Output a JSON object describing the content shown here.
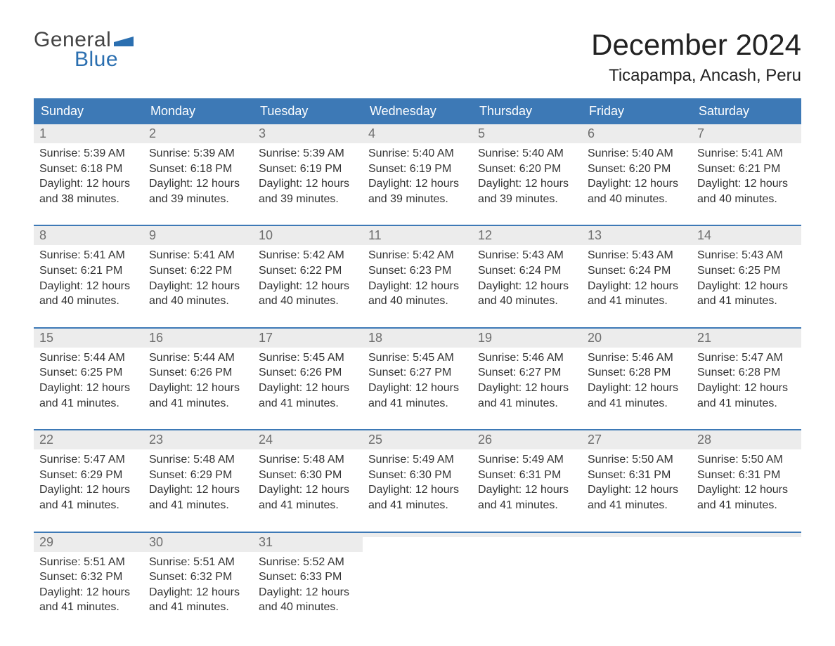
{
  "logo": {
    "word1": "General",
    "word2": "Blue"
  },
  "title": "December 2024",
  "location": "Ticapampa, Ancash, Peru",
  "colors": {
    "header_bg": "#3d79b6",
    "header_text": "#ffffff",
    "daynum_bg": "#ececec",
    "daynum_text": "#6e6e6e",
    "body_text": "#333333",
    "logo_gray": "#444444",
    "logo_blue": "#2b6fb0",
    "week_border": "#3d79b6",
    "page_bg": "#ffffff"
  },
  "fonts": {
    "family": "Arial",
    "title_pt": 42,
    "location_pt": 24,
    "dayhead_pt": 18,
    "daynum_pt": 18,
    "body_pt": 16,
    "logo_pt": 30
  },
  "day_headers": [
    "Sunday",
    "Monday",
    "Tuesday",
    "Wednesday",
    "Thursday",
    "Friday",
    "Saturday"
  ],
  "weeks": [
    [
      {
        "num": "1",
        "sunrise": "Sunrise: 5:39 AM",
        "sunset": "Sunset: 6:18 PM",
        "dl1": "Daylight: 12 hours",
        "dl2": "and 38 minutes."
      },
      {
        "num": "2",
        "sunrise": "Sunrise: 5:39 AM",
        "sunset": "Sunset: 6:18 PM",
        "dl1": "Daylight: 12 hours",
        "dl2": "and 39 minutes."
      },
      {
        "num": "3",
        "sunrise": "Sunrise: 5:39 AM",
        "sunset": "Sunset: 6:19 PM",
        "dl1": "Daylight: 12 hours",
        "dl2": "and 39 minutes."
      },
      {
        "num": "4",
        "sunrise": "Sunrise: 5:40 AM",
        "sunset": "Sunset: 6:19 PM",
        "dl1": "Daylight: 12 hours",
        "dl2": "and 39 minutes."
      },
      {
        "num": "5",
        "sunrise": "Sunrise: 5:40 AM",
        "sunset": "Sunset: 6:20 PM",
        "dl1": "Daylight: 12 hours",
        "dl2": "and 39 minutes."
      },
      {
        "num": "6",
        "sunrise": "Sunrise: 5:40 AM",
        "sunset": "Sunset: 6:20 PM",
        "dl1": "Daylight: 12 hours",
        "dl2": "and 40 minutes."
      },
      {
        "num": "7",
        "sunrise": "Sunrise: 5:41 AM",
        "sunset": "Sunset: 6:21 PM",
        "dl1": "Daylight: 12 hours",
        "dl2": "and 40 minutes."
      }
    ],
    [
      {
        "num": "8",
        "sunrise": "Sunrise: 5:41 AM",
        "sunset": "Sunset: 6:21 PM",
        "dl1": "Daylight: 12 hours",
        "dl2": "and 40 minutes."
      },
      {
        "num": "9",
        "sunrise": "Sunrise: 5:41 AM",
        "sunset": "Sunset: 6:22 PM",
        "dl1": "Daylight: 12 hours",
        "dl2": "and 40 minutes."
      },
      {
        "num": "10",
        "sunrise": "Sunrise: 5:42 AM",
        "sunset": "Sunset: 6:22 PM",
        "dl1": "Daylight: 12 hours",
        "dl2": "and 40 minutes."
      },
      {
        "num": "11",
        "sunrise": "Sunrise: 5:42 AM",
        "sunset": "Sunset: 6:23 PM",
        "dl1": "Daylight: 12 hours",
        "dl2": "and 40 minutes."
      },
      {
        "num": "12",
        "sunrise": "Sunrise: 5:43 AM",
        "sunset": "Sunset: 6:24 PM",
        "dl1": "Daylight: 12 hours",
        "dl2": "and 40 minutes."
      },
      {
        "num": "13",
        "sunrise": "Sunrise: 5:43 AM",
        "sunset": "Sunset: 6:24 PM",
        "dl1": "Daylight: 12 hours",
        "dl2": "and 41 minutes."
      },
      {
        "num": "14",
        "sunrise": "Sunrise: 5:43 AM",
        "sunset": "Sunset: 6:25 PM",
        "dl1": "Daylight: 12 hours",
        "dl2": "and 41 minutes."
      }
    ],
    [
      {
        "num": "15",
        "sunrise": "Sunrise: 5:44 AM",
        "sunset": "Sunset: 6:25 PM",
        "dl1": "Daylight: 12 hours",
        "dl2": "and 41 minutes."
      },
      {
        "num": "16",
        "sunrise": "Sunrise: 5:44 AM",
        "sunset": "Sunset: 6:26 PM",
        "dl1": "Daylight: 12 hours",
        "dl2": "and 41 minutes."
      },
      {
        "num": "17",
        "sunrise": "Sunrise: 5:45 AM",
        "sunset": "Sunset: 6:26 PM",
        "dl1": "Daylight: 12 hours",
        "dl2": "and 41 minutes."
      },
      {
        "num": "18",
        "sunrise": "Sunrise: 5:45 AM",
        "sunset": "Sunset: 6:27 PM",
        "dl1": "Daylight: 12 hours",
        "dl2": "and 41 minutes."
      },
      {
        "num": "19",
        "sunrise": "Sunrise: 5:46 AM",
        "sunset": "Sunset: 6:27 PM",
        "dl1": "Daylight: 12 hours",
        "dl2": "and 41 minutes."
      },
      {
        "num": "20",
        "sunrise": "Sunrise: 5:46 AM",
        "sunset": "Sunset: 6:28 PM",
        "dl1": "Daylight: 12 hours",
        "dl2": "and 41 minutes."
      },
      {
        "num": "21",
        "sunrise": "Sunrise: 5:47 AM",
        "sunset": "Sunset: 6:28 PM",
        "dl1": "Daylight: 12 hours",
        "dl2": "and 41 minutes."
      }
    ],
    [
      {
        "num": "22",
        "sunrise": "Sunrise: 5:47 AM",
        "sunset": "Sunset: 6:29 PM",
        "dl1": "Daylight: 12 hours",
        "dl2": "and 41 minutes."
      },
      {
        "num": "23",
        "sunrise": "Sunrise: 5:48 AM",
        "sunset": "Sunset: 6:29 PM",
        "dl1": "Daylight: 12 hours",
        "dl2": "and 41 minutes."
      },
      {
        "num": "24",
        "sunrise": "Sunrise: 5:48 AM",
        "sunset": "Sunset: 6:30 PM",
        "dl1": "Daylight: 12 hours",
        "dl2": "and 41 minutes."
      },
      {
        "num": "25",
        "sunrise": "Sunrise: 5:49 AM",
        "sunset": "Sunset: 6:30 PM",
        "dl1": "Daylight: 12 hours",
        "dl2": "and 41 minutes."
      },
      {
        "num": "26",
        "sunrise": "Sunrise: 5:49 AM",
        "sunset": "Sunset: 6:31 PM",
        "dl1": "Daylight: 12 hours",
        "dl2": "and 41 minutes."
      },
      {
        "num": "27",
        "sunrise": "Sunrise: 5:50 AM",
        "sunset": "Sunset: 6:31 PM",
        "dl1": "Daylight: 12 hours",
        "dl2": "and 41 minutes."
      },
      {
        "num": "28",
        "sunrise": "Sunrise: 5:50 AM",
        "sunset": "Sunset: 6:31 PM",
        "dl1": "Daylight: 12 hours",
        "dl2": "and 41 minutes."
      }
    ],
    [
      {
        "num": "29",
        "sunrise": "Sunrise: 5:51 AM",
        "sunset": "Sunset: 6:32 PM",
        "dl1": "Daylight: 12 hours",
        "dl2": "and 41 minutes."
      },
      {
        "num": "30",
        "sunrise": "Sunrise: 5:51 AM",
        "sunset": "Sunset: 6:32 PM",
        "dl1": "Daylight: 12 hours",
        "dl2": "and 41 minutes."
      },
      {
        "num": "31",
        "sunrise": "Sunrise: 5:52 AM",
        "sunset": "Sunset: 6:33 PM",
        "dl1": "Daylight: 12 hours",
        "dl2": "and 40 minutes."
      },
      {
        "empty": true
      },
      {
        "empty": true
      },
      {
        "empty": true
      },
      {
        "empty": true
      }
    ]
  ]
}
